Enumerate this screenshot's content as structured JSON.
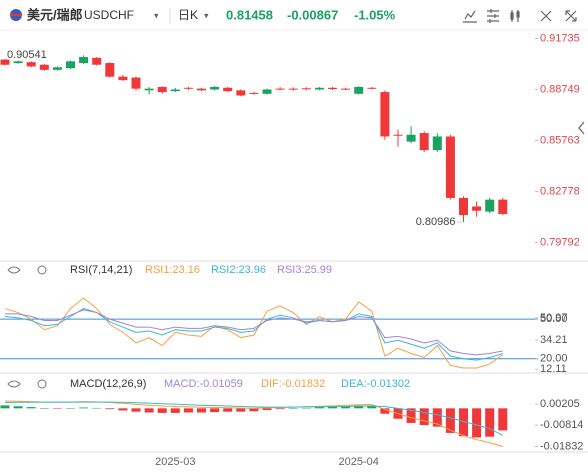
{
  "header": {
    "title": "美元/瑞郎",
    "symbol": "USDCHF",
    "period": "日K",
    "price": "0.81458",
    "change": "-0.00867",
    "change_pct": "-1.05%"
  },
  "chart_data": [
    {
      "type": "candlestick",
      "up_color": "#1aa260",
      "down_color": "#f0383b",
      "categories": [
        null,
        null,
        null,
        null,
        null,
        null,
        null,
        null,
        null,
        null,
        null,
        null,
        null,
        "2025-03",
        null,
        null,
        null,
        null,
        null,
        null,
        null,
        null,
        null,
        null,
        null,
        null,
        null,
        "2025-04",
        null,
        null,
        null,
        null,
        null,
        null,
        null,
        null,
        null,
        null,
        null
      ],
      "open": [
        0.905,
        0.903,
        0.9035,
        0.902,
        0.899,
        0.9,
        0.903,
        0.906,
        0.903,
        0.895,
        0.8945,
        0.887,
        0.889,
        0.8865,
        0.8885,
        0.888,
        0.8875,
        0.8885,
        0.887,
        0.8855,
        0.885,
        0.888,
        0.888,
        0.8882,
        0.8875,
        0.8885,
        0.888,
        0.885,
        0.8885,
        0.886,
        0.861,
        0.857,
        0.862,
        0.852,
        0.86,
        0.824,
        0.819,
        0.816,
        0.823
      ],
      "high": [
        0.90541,
        0.9045,
        0.904,
        0.9025,
        0.901,
        0.9045,
        0.9075,
        0.9065,
        0.9035,
        0.896,
        0.895,
        0.889,
        0.8895,
        0.8885,
        0.889,
        0.8885,
        0.8895,
        0.889,
        0.8875,
        0.8862,
        0.888,
        0.889,
        0.8888,
        0.8888,
        0.889,
        0.889,
        0.8886,
        0.8895,
        0.889,
        0.887,
        0.864,
        0.866,
        0.863,
        0.862,
        0.861,
        0.825,
        0.822,
        0.824,
        0.824
      ],
      "low": [
        0.9015,
        0.9025,
        0.9005,
        0.8985,
        0.8985,
        0.8995,
        0.9025,
        0.9015,
        0.8945,
        0.8925,
        0.887,
        0.8845,
        0.885,
        0.886,
        0.8872,
        0.8865,
        0.887,
        0.886,
        0.8835,
        0.8845,
        0.8845,
        0.887,
        0.8868,
        0.8872,
        0.887,
        0.8872,
        0.8872,
        0.8845,
        0.8875,
        0.858,
        0.854,
        0.856,
        0.851,
        0.851,
        0.823,
        0.80986,
        0.813,
        0.815,
        0.814
      ],
      "close": [
        0.902,
        0.904,
        0.901,
        0.899,
        0.9005,
        0.904,
        0.9065,
        0.902,
        0.895,
        0.893,
        0.888,
        0.888,
        0.886,
        0.8875,
        0.888,
        0.887,
        0.889,
        0.8865,
        0.884,
        0.885,
        0.8875,
        0.8875,
        0.8875,
        0.8878,
        0.8885,
        0.8878,
        0.8878,
        0.889,
        0.888,
        0.86,
        0.8605,
        0.861,
        0.852,
        0.86,
        0.824,
        0.814,
        0.8165,
        0.823,
        0.81458
      ],
      "ylim": [
        0.79,
        0.92
      ],
      "yticks": [
        0.91735,
        0.88749,
        0.85763,
        0.82778,
        0.79792
      ],
      "annotations": [
        {
          "text": "0.90541",
          "index": 0
        },
        {
          "text": "0.80986",
          "index": 35
        }
      ]
    },
    {
      "type": "line",
      "title": "RSI(7,14,21)",
      "ylim": [
        10,
        66
      ],
      "yticks": [
        {
          "value": 50.97,
          "label": "50.97"
        },
        {
          "value": 50,
          "label": "50.00"
        },
        34.21,
        {
          "value": 20,
          "label": "20.00"
        },
        12.11
      ],
      "hlines": [
        50,
        20
      ],
      "hline_color": "#3a8fd8",
      "series": [
        {
          "name": "RSI1:23.16",
          "color": "#f5a042",
          "values": [
            58,
            55,
            50,
            42,
            45,
            58,
            66,
            58,
            46,
            40,
            32,
            36,
            30,
            40,
            38,
            37,
            45,
            42,
            36,
            38,
            56,
            60,
            55,
            46,
            52,
            48,
            50,
            63,
            56,
            22,
            28,
            24,
            21,
            30,
            15,
            13,
            13,
            16,
            23.16
          ]
        },
        {
          "name": "RSI2:23.96",
          "color": "#3ab8d0",
          "values": [
            52,
            51,
            49,
            45,
            46,
            52,
            58,
            55,
            48,
            44,
            40,
            41,
            38,
            42,
            41,
            41,
            44,
            43,
            40,
            41,
            50,
            53,
            51,
            47,
            49,
            48,
            49,
            54,
            52,
            32,
            34,
            31,
            28,
            32,
            22,
            20,
            19,
            21,
            23.96
          ]
        },
        {
          "name": "RSI3:25.99",
          "color": "#a083d8",
          "values": [
            54,
            54,
            52,
            49,
            49,
            53,
            57,
            55,
            50,
            47,
            44,
            44,
            42,
            44,
            43,
            43,
            45,
            44,
            42,
            43,
            49,
            51,
            50,
            48,
            49,
            48,
            49,
            52,
            51,
            36,
            37,
            35,
            32,
            34,
            26,
            24,
            23,
            24,
            25.99
          ]
        }
      ]
    },
    {
      "type": "macd",
      "title": "MACD(12,26,9)",
      "ylim": [
        -0.02,
        0.004
      ],
      "yticks": [
        0.00205,
        -0.00814,
        -0.01832
      ],
      "hist": {
        "name": "MACD:-0.01059",
        "color": "#a083d8",
        "up_color": "#1aa260",
        "down_color": "#f0383b",
        "values": [
          0.0014,
          0.001,
          0.0006,
          0,
          -0.0002,
          0,
          0.0004,
          0.0002,
          -0.0004,
          -0.001,
          -0.0016,
          -0.002,
          -0.0022,
          -0.0022,
          -0.002,
          -0.002,
          -0.0018,
          -0.0016,
          -0.0016,
          -0.0014,
          -0.0008,
          -0.0004,
          0,
          0.0002,
          0.0006,
          0.0008,
          0.001,
          0.0012,
          0.0012,
          -0.0026,
          -0.005,
          -0.007,
          -0.008,
          -0.0088,
          -0.0118,
          -0.0134,
          -0.014,
          -0.0136,
          -0.01059
        ]
      },
      "series": [
        {
          "name": "DIF:-0.01832",
          "color": "#f5a042",
          "values": [
            0.0035,
            0.0034,
            0.0032,
            0.003,
            0.0029,
            0.003,
            0.0032,
            0.0031,
            0.0028,
            0.0024,
            0.0019,
            0.0015,
            0.0011,
            0.0009,
            0.0007,
            0.0005,
            0.0004,
            0.0003,
            0.0001,
            0,
            0.0002,
            0.0004,
            0.0006,
            0.0008,
            0.001,
            0.0012,
            0.0014,
            0.0017,
            0.0018,
            -0.0005,
            -0.0025,
            -0.0045,
            -0.006,
            -0.0075,
            -0.0105,
            -0.013,
            -0.015,
            -0.0165,
            -0.01832
          ]
        },
        {
          "name": "DEA:-0.01302",
          "color": "#3ab8d0",
          "values": [
            0.0028,
            0.0029,
            0.0029,
            0.003,
            0.003,
            0.003,
            0.003,
            0.003,
            0.003,
            0.0029,
            0.0027,
            0.0025,
            0.0022,
            0.002,
            0.0017,
            0.0015,
            0.0013,
            0.0011,
            0.0009,
            0.0007,
            0.0006,
            0.0006,
            0.0006,
            0.0007,
            0.0007,
            0.0008,
            0.0009,
            0.0011,
            0.0012,
            0.0008,
            0,
            -0.001,
            -0.002,
            -0.0031,
            -0.0046,
            -0.0063,
            -0.008,
            -0.0097,
            -0.01302
          ]
        }
      ]
    }
  ]
}
